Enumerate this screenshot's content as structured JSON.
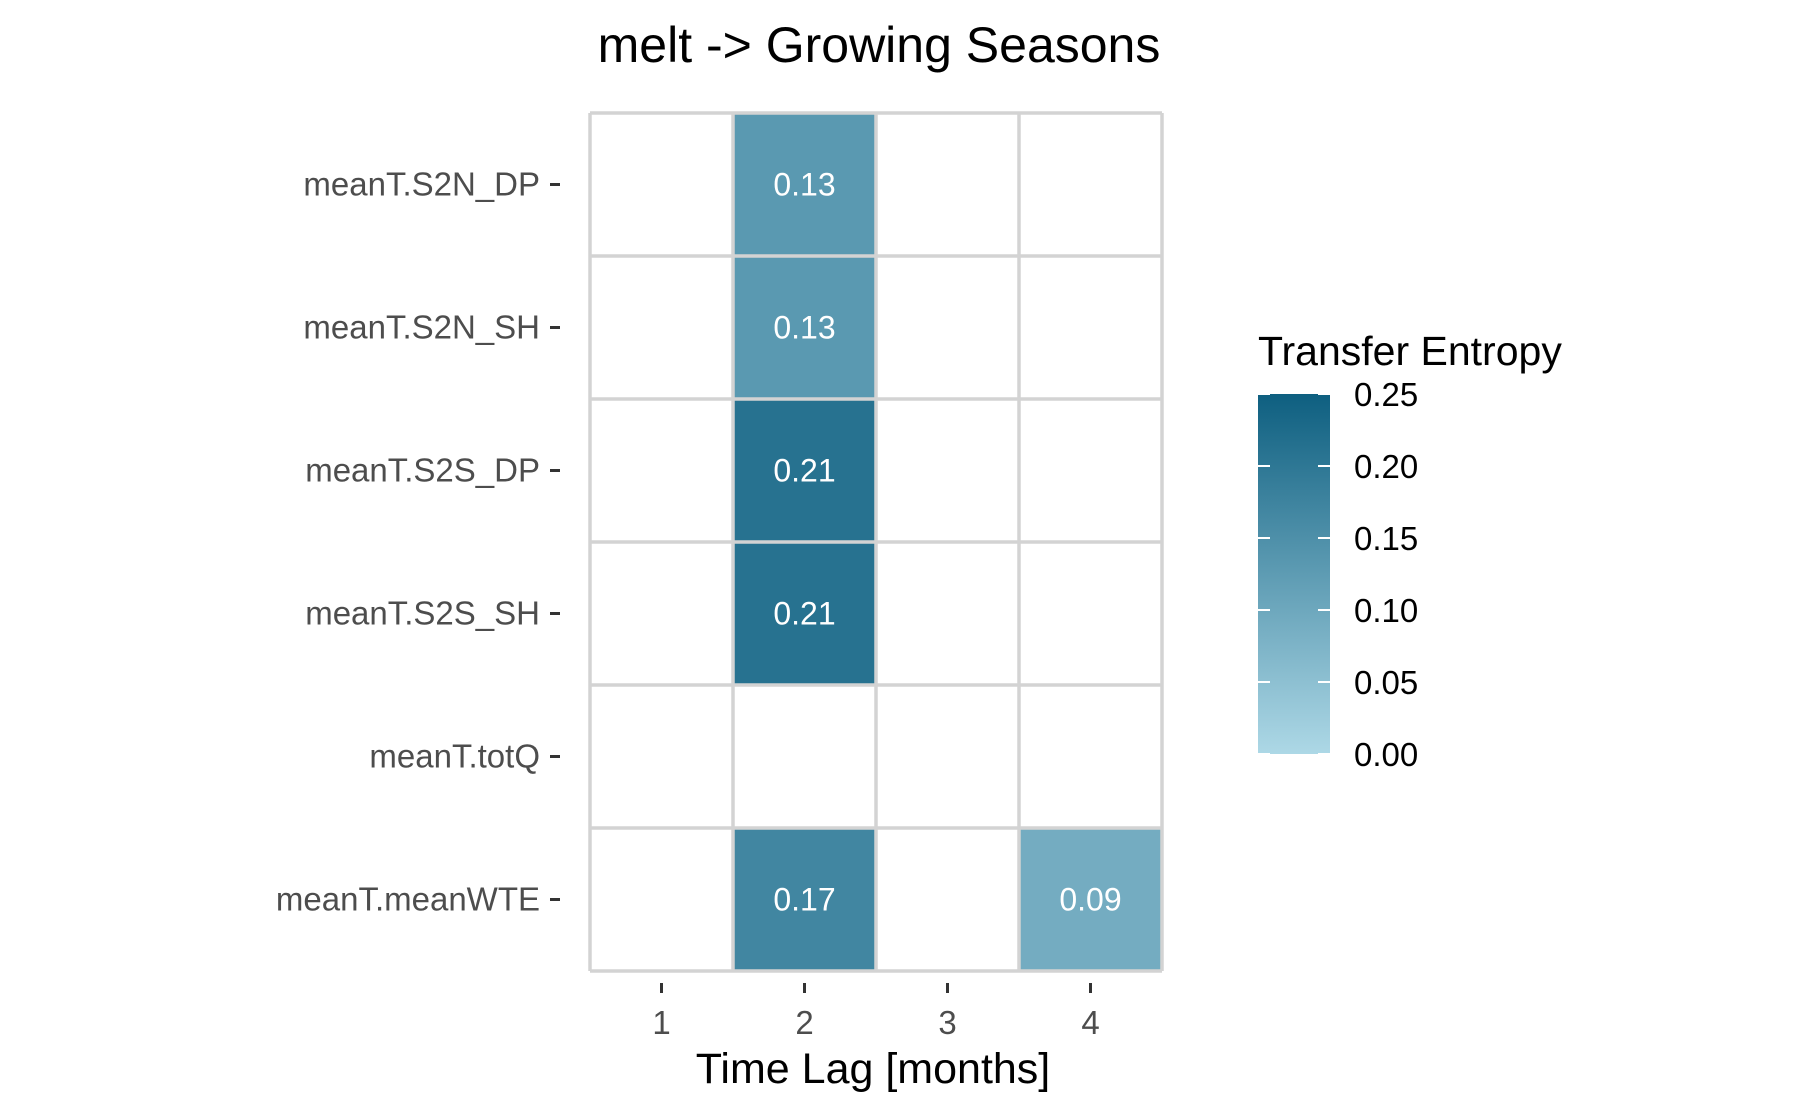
{
  "chart_data": {
    "type": "heatmap",
    "title": "melt -> Growing Seasons",
    "xlabel": "Time Lag [months]",
    "ylabel": "",
    "x_categories": [
      "1",
      "2",
      "3",
      "4"
    ],
    "y_categories": [
      "meanT.S2N_DP",
      "meanT.S2N_SH",
      "meanT.S2S_DP",
      "meanT.S2S_SH",
      "meanT.totQ",
      "meanT.meanWTE"
    ],
    "cells": [
      {
        "x": "2",
        "y": "meanT.S2N_DP",
        "value": 0.13,
        "label": "0.13"
      },
      {
        "x": "2",
        "y": "meanT.S2N_SH",
        "value": 0.13,
        "label": "0.13"
      },
      {
        "x": "2",
        "y": "meanT.S2S_DP",
        "value": 0.21,
        "label": "0.21"
      },
      {
        "x": "2",
        "y": "meanT.S2S_SH",
        "value": 0.21,
        "label": "0.21"
      },
      {
        "x": "2",
        "y": "meanT.meanWTE",
        "value": 0.17,
        "label": "0.17"
      },
      {
        "x": "4",
        "y": "meanT.meanWTE",
        "value": 0.09,
        "label": "0.09"
      }
    ],
    "legend": {
      "title": "Transfer Entropy",
      "placement": "right",
      "range": [
        0,
        0.25
      ],
      "ticks": [
        "0.00",
        "0.05",
        "0.10",
        "0.15",
        "0.20",
        "0.25"
      ],
      "color_low": "#add8e6",
      "color_high": "#0e5f80"
    },
    "empty_color": "#ffffff",
    "grid_color": "#d3d3d3",
    "grid": true
  }
}
